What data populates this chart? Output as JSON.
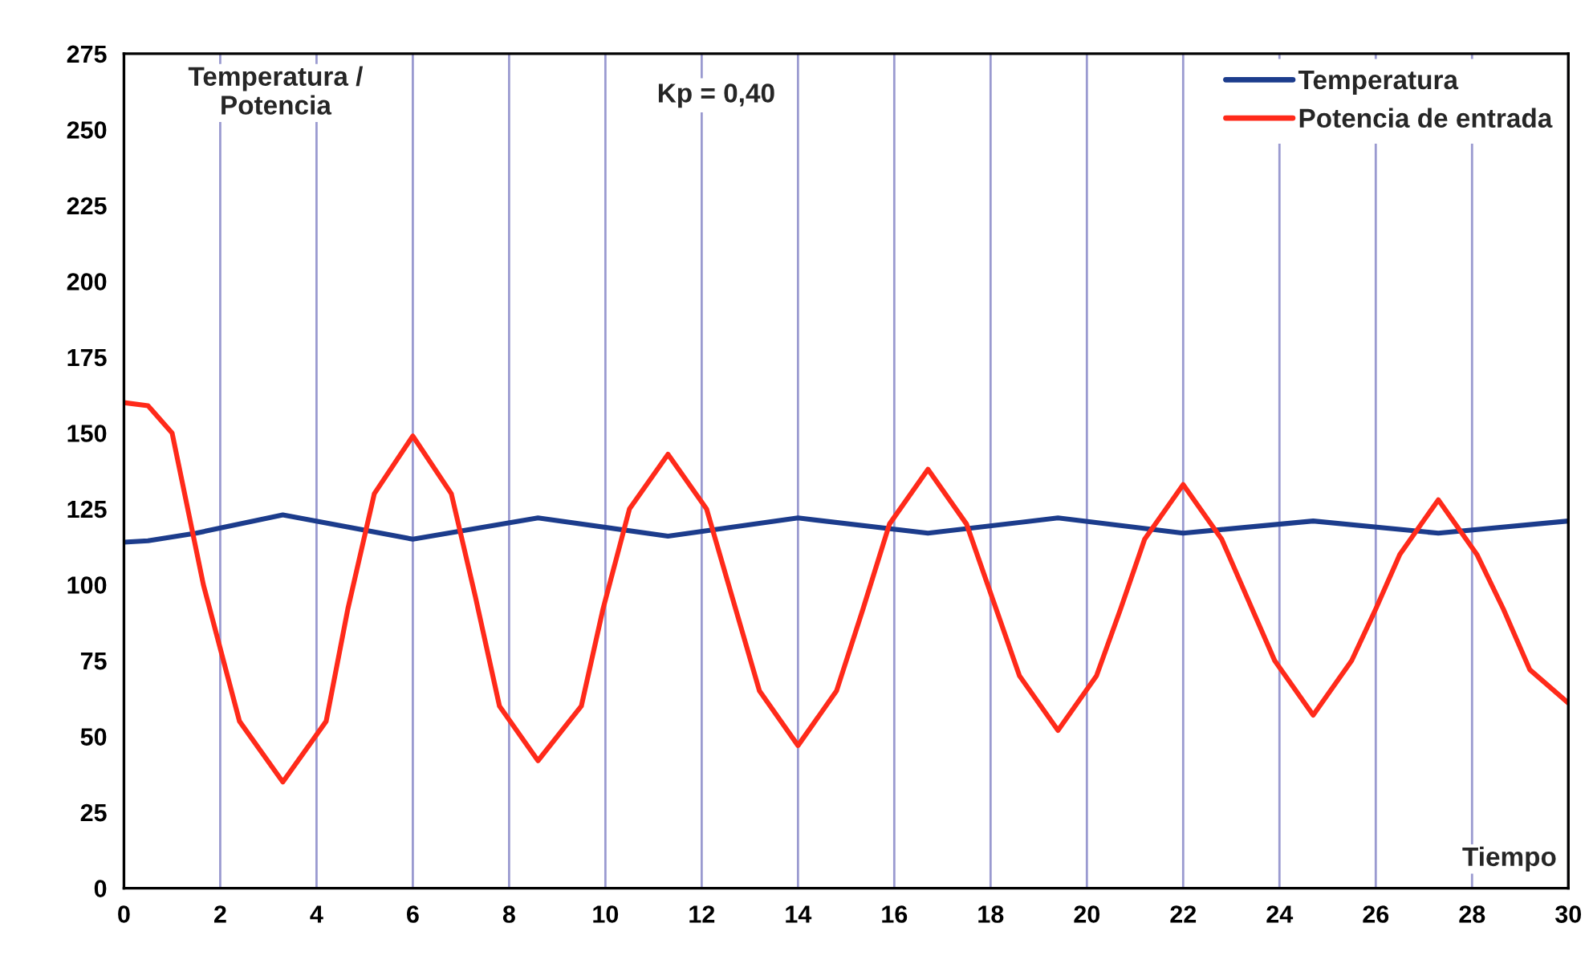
{
  "chart_data": {
    "type": "line",
    "xlabel": "Tiempo",
    "ylabel": "Temperatura /\nPotencia",
    "annotations": [
      "Kp = 0,40"
    ],
    "xlim": [
      0,
      30
    ],
    "xticks": [
      0,
      2,
      4,
      6,
      8,
      10,
      12,
      14,
      16,
      18,
      20,
      22,
      24,
      26,
      28,
      30
    ],
    "ylim": [
      0,
      275
    ],
    "yticks": [
      0,
      25,
      50,
      75,
      100,
      125,
      150,
      175,
      200,
      225,
      250,
      275
    ],
    "grid": "x",
    "legend": "top right",
    "line_style": "solid",
    "marker": "none",
    "series": [
      {
        "name": "Temperatura",
        "color": "#1c3c8c",
        "x": [
          0,
          0.5,
          1.5,
          3.3,
          6,
          8.6,
          11.3,
          14,
          16.7,
          19.4,
          22,
          24.7,
          27.3,
          30
        ],
        "values": [
          114,
          114.5,
          117,
          123,
          115,
          122,
          116,
          122,
          117,
          122,
          117,
          121,
          117,
          121
        ]
      },
      {
        "name": "Potencia de entrada",
        "color": "#ff2a1a",
        "x": [
          0,
          0.5,
          1.0,
          1.65,
          2.4,
          3.3,
          4.2,
          4.65,
          5.2,
          6,
          6.8,
          7.3,
          7.8,
          8.6,
          9.5,
          9.95,
          10.5,
          11.3,
          12.1,
          12.65,
          13.2,
          14,
          14.8,
          15.35,
          15.9,
          16.7,
          17.5,
          18.05,
          18.6,
          19.4,
          20.2,
          20.7,
          21.2,
          22,
          22.8,
          23.35,
          23.9,
          24.7,
          25.5,
          26.0,
          26.5,
          27.3,
          28.1,
          28.65,
          29.2,
          30
        ],
        "values": [
          160,
          159,
          150,
          100,
          55,
          35,
          55,
          92,
          130,
          149,
          130,
          96,
          60,
          42,
          60,
          92,
          125,
          143,
          125,
          95,
          65,
          47,
          65,
          92,
          120,
          138,
          120,
          95,
          70,
          52,
          70,
          92,
          115,
          133,
          115,
          95,
          75,
          57,
          75,
          92,
          110,
          128,
          110,
          92,
          72,
          61
        ]
      }
    ]
  }
}
